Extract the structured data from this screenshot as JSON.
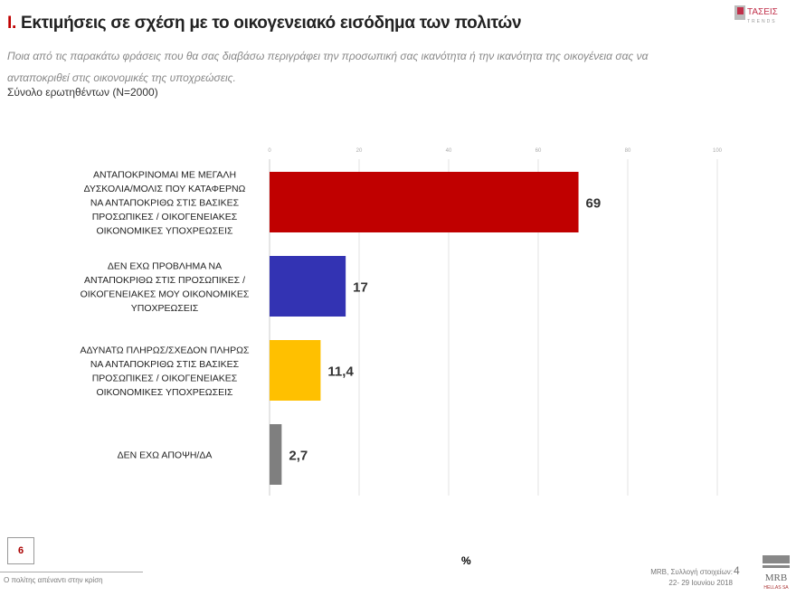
{
  "header": {
    "title_num": "Ι.",
    "title": " Εκτιμήσεις σε σχέση με το οικογενειακό εισόδημα των πολιτών",
    "subtitle": "Ποια από τις παρακάτω φράσεις που θα σας διαβάσω περιγράφει την προσωπική σας ικανότητα ή την ικανότητα της οικογένεια σας να ανταποκριθεί στις οικονομικές της  υποχρεώσεις.",
    "base": "Σύνολο ερωτηθέντων (N=2000)",
    "logo": "ΤΑΣΕΙΣ TRENDS"
  },
  "chart_data": {
    "type": "bar",
    "orientation": "horizontal",
    "categories": [
      "ΑΝΤΑΠΟΚΡΙΝΟΜΑΙ ΜΕ ΜΕΓΑΛΗ ΔΥΣΚΟΛΙΑ/ΜΟΛΙΣ ΠΟΥ ΚΑΤΑΦΕΡΝΩ ΝΑ ΑΝΤΑΠΟΚΡΙΘΩ ΣΤΙΣ ΒΑΣΙΚΕΣ ΠΡΟΣΩΠΙΚΕΣ / ΟΙΚΟΓΕΝΕΙΑΚΕΣ ΟΙΚΟΝΟΜΙΚΕΣ ΥΠΟΧΡΕΩΣΕΙΣ",
      "ΔΕΝ ΕΧΩ ΠΡΟΒΛΗΜΑ ΝΑ ΑΝΤΑΠΟΚΡΙΘΩ ΣΤΙΣ ΠΡΟΣΩΠΙΚΕΣ / ΟΙΚΟΓΕΝΕΙΑΚΕΣ ΜΟΥ ΟΙΚΟΝΟΜΙΚΕΣ ΥΠΟΧΡΕΩΣΕΙΣ",
      "ΑΔΥΝΑΤΩ ΠΛΗΡΩΣ/ΣΧΕΔΟΝ ΠΛΗΡΩΣ ΝΑ ΑΝΤΑΠΟΚΡΙΘΩ ΣΤΙΣ ΒΑΣΙΚΕΣ ΠΡΟΣΩΠΙΚΕΣ / ΟΙΚΟΓΕΝΕΙΑΚΕΣ ΟΙΚΟΝΟΜΙΚΕΣ ΥΠΟΧΡΕΩΣΕΙΣ",
      "ΔΕΝ ΕΧΩ ΑΠΟΨΗ/ΔΑ"
    ],
    "category_lines": [
      [
        "ΑΝΤΑΠΟΚΡΙΝΟΜΑΙ ΜΕ ΜΕΓΑΛΗ",
        "ΔΥΣΚΟΛΙΑ/ΜΟΛΙΣ ΠΟΥ ΚΑΤΑΦΕΡΝΩ",
        "ΝΑ ΑΝΤΑΠΟΚΡΙΘΩ ΣΤΙΣ ΒΑΣΙΚΕΣ",
        "ΠΡΟΣΩΠΙΚΕΣ / ΟΙΚΟΓΕΝΕΙΑΚΕΣ",
        "ΟΙΚΟΝΟΜΙΚΕΣ ΥΠΟΧΡΕΩΣΕΙΣ"
      ],
      [
        "ΔΕΝ ΕΧΩ ΠΡΟΒΛΗΜΑ ΝΑ",
        "ΑΝΤΑΠΟΚΡΙΘΩ ΣΤΙΣ ΠΡΟΣΩΠΙΚΕΣ /",
        "ΟΙΚΟΓΕΝΕΙΑΚΕΣ ΜΟΥ ΟΙΚΟΝΟΜΙΚΕΣ",
        "ΥΠΟΧΡΕΩΣΕΙΣ"
      ],
      [
        "ΑΔΥΝΑΤΩ ΠΛΗΡΩΣ/ΣΧΕΔΟΝ ΠΛΗΡΩΣ",
        "ΝΑ ΑΝΤΑΠΟΚΡΙΘΩ ΣΤΙΣ ΒΑΣΙΚΕΣ",
        "ΠΡΟΣΩΠΙΚΕΣ / ΟΙΚΟΓΕΝΕΙΑΚΕΣ",
        "ΟΙΚΟΝΟΜΙΚΕΣ ΥΠΟΧΡΕΩΣΕΙΣ"
      ],
      [
        "ΔΕΝ ΕΧΩ ΑΠΟΨΗ/ΔΑ"
      ]
    ],
    "values": [
      69,
      17,
      11.4,
      2.7
    ],
    "value_labels": [
      "69",
      "17",
      "11,4",
      "2,7"
    ],
    "colors": [
      "#c00000",
      "#3333b3",
      "#ffc000",
      "#7f7f7f"
    ],
    "xlim": [
      0,
      100
    ],
    "xticks": [
      0,
      20,
      40,
      60,
      80,
      100
    ],
    "xlabel": "%",
    "grid": true
  },
  "footer": {
    "page_box": "6",
    "section": "Ο πολίτης απέναντι στην κρίση",
    "source_line1": "MRB, Συλλογή στοιχείων:",
    "source_line2": "22- 29 Ιουνίου 2018",
    "page_number": "4",
    "mrb_logo": "MRB HELLAS SA"
  }
}
